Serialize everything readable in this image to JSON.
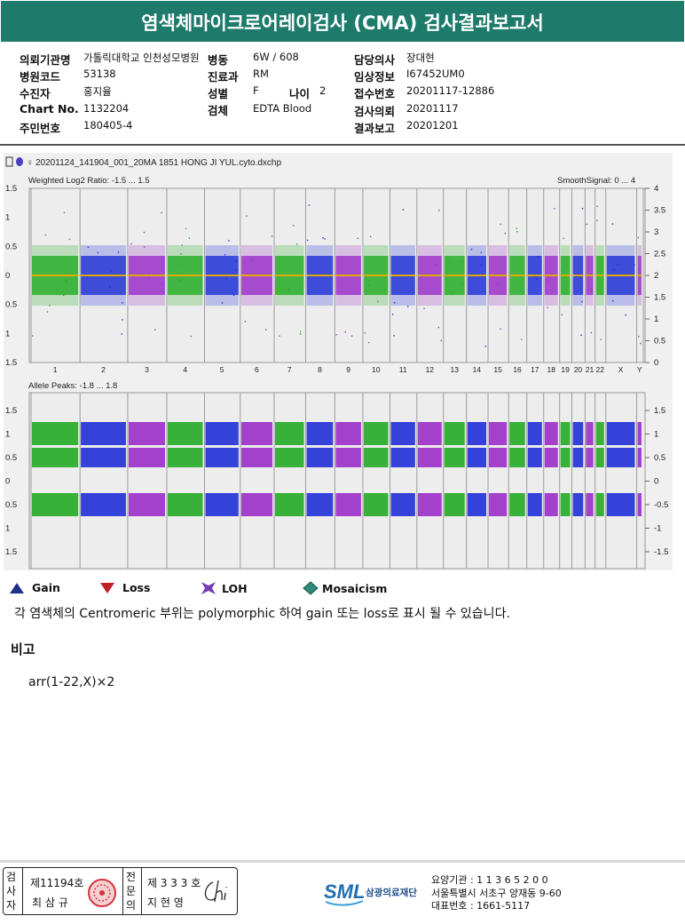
{
  "title": "염색체마이크로어레이검사 (CMA) 검사결과보고서",
  "info": {
    "institution_label": "의뢰기관명",
    "institution": "가톨릭대학교 인천성모병원",
    "ward_label": "병동",
    "ward": "6W / 608",
    "doctor_label": "담당의사",
    "doctor": "장대현",
    "hospital_code_label": "병원코드",
    "hospital_code": "53138",
    "dept_label": "진료과",
    "dept": "RM",
    "clinical_info_label": "임상정보",
    "clinical_info": "I67452UM0",
    "patient_label": "수진자",
    "patient": "홍지율",
    "sex_label": "성별",
    "sex": "F",
    "age_label": "나이",
    "age": "2",
    "receipt_no_label": "접수번호",
    "receipt_no": "20201117-12886",
    "chart_no_label": "Chart No.",
    "chart_no": "1132204",
    "specimen_label": "검체",
    "specimen": "EDTA Blood",
    "request_date_label": "검사의뢰",
    "request_date": "20201117",
    "id_no_label": "주민번호",
    "id_no": "180405-4",
    "report_date_label": "결과보고",
    "report_date": "20201201"
  },
  "figure": {
    "file": "20201124_141904_001_20MA 1851 HONG JI YUL.cyto.dxchp",
    "top_label": "Weighted Log2 Ratio: -1.5 ... 1.5",
    "smooth_label": "SmoothSignal: 0 ... 4",
    "bottom_label": "Allele Peaks: -1.8 ... 1.8",
    "top_left_ticks": [
      "1.5",
      "1",
      "0.5",
      "0",
      "0.5",
      "1",
      "1.5"
    ],
    "top_right_ticks": [
      "4",
      "3.5",
      "3",
      "2.5",
      "2",
      "1.5",
      "1",
      "0.5",
      "0"
    ],
    "bottom_left_ticks": [
      "1.5",
      "1",
      "0.5",
      "0",
      "0.5",
      "1",
      "1.5"
    ],
    "bottom_right_ticks": [
      "1.5",
      "1",
      "0.5",
      "0",
      "-0.5",
      "-1",
      "-1.5"
    ],
    "chromosomes": [
      "1",
      "2",
      "3",
      "4",
      "5",
      "6",
      "7",
      "8",
      "9",
      "10",
      "11",
      "12",
      "13",
      "14",
      "15",
      "16",
      "17",
      "18",
      "19",
      "20",
      "21",
      "22",
      "X",
      "Y"
    ],
    "colors": {
      "green": "#22aa22",
      "blue": "#1f2fd6",
      "purple": "#9a2ec8",
      "smooth": "#e0a800"
    }
  },
  "legend": {
    "gain": "Gain",
    "loss": "Loss",
    "loh": "LOH",
    "mosaicism": "Mosaicism",
    "gain_color": "#1f2f8a",
    "loss_color": "#c0202a",
    "loh_color": "#7a3db8",
    "mosaic_color": "#2e8b7a"
  },
  "note": "각 염색체의 Centromeric 부위는 polymorphic 하여 gain 또는 loss로 표시 될 수 있습니다.",
  "remark_heading": "비고",
  "remark_text": "arr(1-22,X)×2",
  "footer": {
    "exam_side": "검사자",
    "exam_license": "제11194호",
    "exam_name": "최 삼 규",
    "spec_side": "전문의",
    "spec_license": "제 3 3 3 호",
    "spec_name": "지 현 영",
    "logo_text": "SML",
    "org_name": "삼광의료재단",
    "care_code": "요양기관 : 1 1 3 6 5 2 0 0",
    "address": "서울특별시 서초구 양재동 9-60",
    "phone": "대표번호 : 1661-5117"
  }
}
